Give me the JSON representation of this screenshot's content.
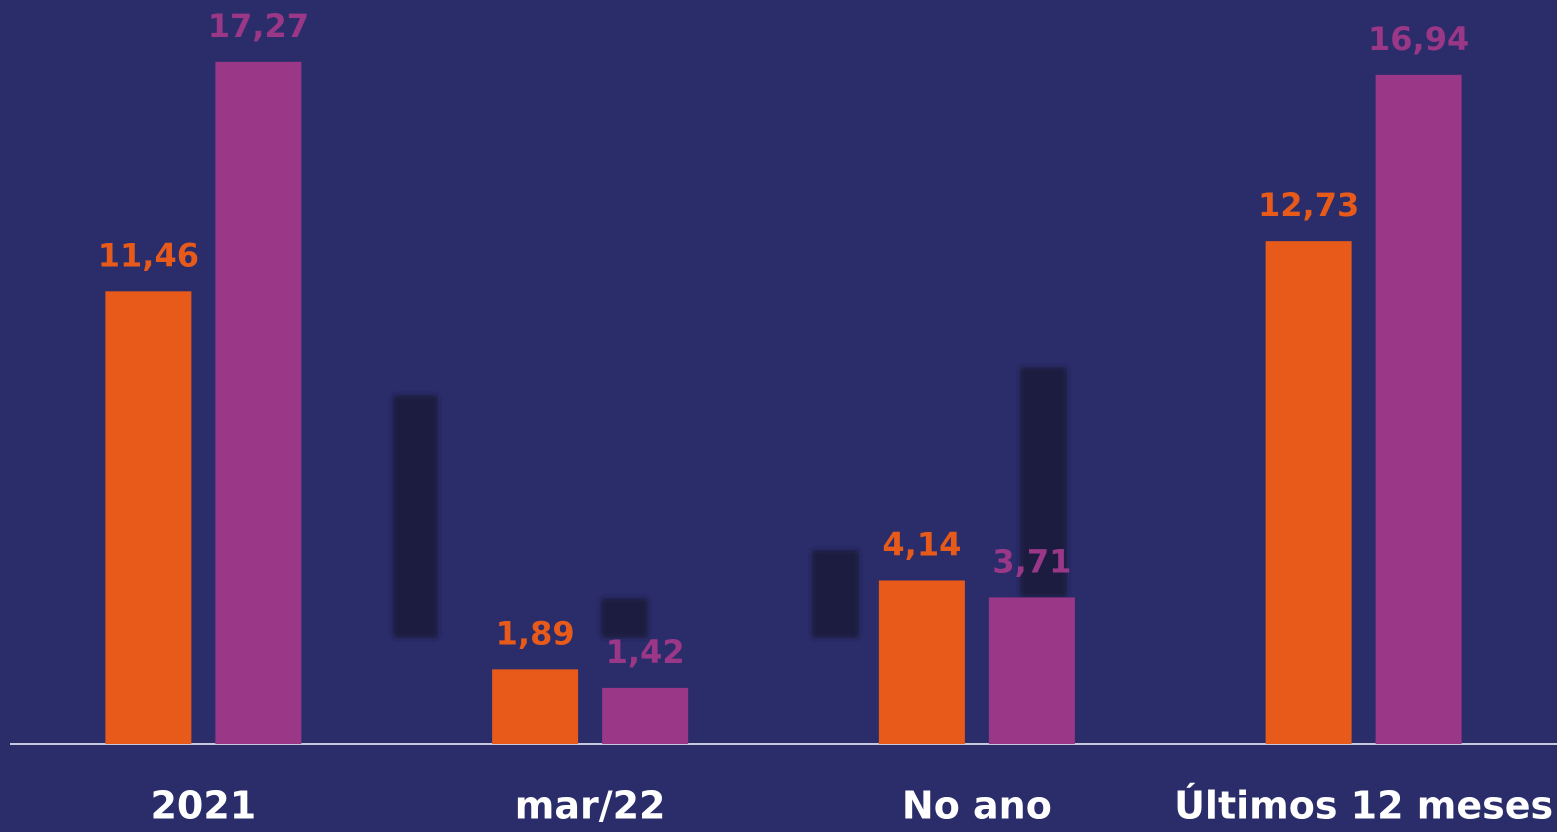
{
  "chart_data": {
    "type": "bar",
    "categories": [
      "2021",
      "mar/22",
      "No ano",
      "Últimos 12 meses"
    ],
    "series": [
      {
        "color": "#e85a1a",
        "values": [
          11.46,
          1.89,
          4.14,
          12.73
        ],
        "value_labels": [
          "11,46",
          "1,89",
          "4,14",
          "12,73"
        ]
      },
      {
        "color": "#9b3787",
        "values": [
          17.27,
          1.42,
          3.71,
          16.94
        ],
        "value_labels": [
          "17,27",
          "1,42",
          "3,71",
          "16,94"
        ]
      }
    ],
    "ylim": [
      0,
      18
    ]
  }
}
